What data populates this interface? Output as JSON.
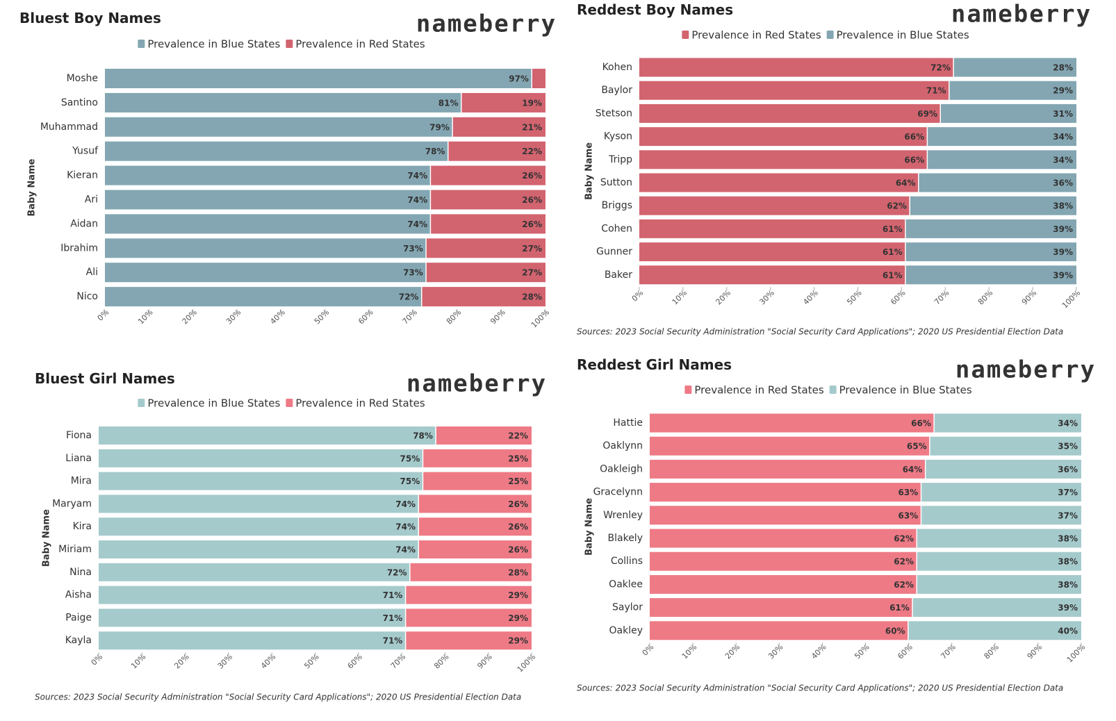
{
  "chart_data": [
    {
      "type": "stacked-bar",
      "title": "Bluest Boy Names",
      "brand": "nameberry",
      "y_label": "Baby Name",
      "categories": [
        "Moshe",
        "Santino",
        "Muhammad",
        "Yusuf",
        "Kieran",
        "Ari",
        "Aidan",
        "Ibrahim",
        "Ali",
        "Nico"
      ],
      "series": [
        {
          "name": "Prevalence in Blue States",
          "color": "#83a6b2",
          "label_color": "#ffffff",
          "values": [
            97,
            81,
            79,
            78,
            74,
            74,
            74,
            73,
            73,
            72
          ],
          "value_labels": [
            "97%",
            "81%",
            "79%",
            "78%",
            "74%",
            "74%",
            "74%",
            "73%",
            "73%",
            "72%"
          ]
        },
        {
          "name": "Prevalence in Red States",
          "color": "#d2646f",
          "label_color": "#ffffff",
          "values": [
            3,
            19,
            21,
            22,
            26,
            26,
            26,
            27,
            27,
            28
          ],
          "value_labels": [
            null,
            "19%",
            "21%",
            "22%",
            "26%",
            "26%",
            "26%",
            "27%",
            "27%",
            "28%"
          ]
        }
      ],
      "xlim": [
        0,
        100
      ],
      "xticks": [
        {
          "value": 0,
          "label": "0%"
        },
        {
          "value": 10,
          "label": "10%"
        },
        {
          "value": 20,
          "label": "20%"
        },
        {
          "value": 30,
          "label": "30%"
        },
        {
          "value": 40,
          "label": "40%"
        },
        {
          "value": 50,
          "label": "50%"
        },
        {
          "value": 60,
          "label": "60%"
        },
        {
          "value": 70,
          "label": "70%"
        },
        {
          "value": 80,
          "label": "80%"
        },
        {
          "value": 90,
          "label": "90%"
        },
        {
          "value": 100,
          "label": "100%"
        }
      ]
    },
    {
      "type": "stacked-bar",
      "title": "Reddest Boy Names",
      "brand": "nameberry",
      "y_label": "Baby Name",
      "source": "Sources: 2023 Social Security Administration \"Social Security Card Applications\"; 2020 US Presidential Election Data",
      "categories": [
        "Kohen",
        "Baylor",
        "Stetson",
        "Kyson",
        "Tripp",
        "Sutton",
        "Briggs",
        "Cohen",
        "Gunner",
        "Baker"
      ],
      "series": [
        {
          "name": "Prevalence in Red States",
          "color": "#d2646f",
          "label_color": "#ffffff",
          "values": [
            72,
            71,
            69,
            66,
            66,
            64,
            62,
            61,
            61,
            61
          ],
          "value_labels": [
            "72%",
            "71%",
            "69%",
            "66%",
            "66%",
            "64%",
            "62%",
            "61%",
            "61%",
            "61%"
          ]
        },
        {
          "name": "Prevalence in Blue States",
          "color": "#83a6b2",
          "label_color": "#ffffff",
          "values": [
            28,
            29,
            31,
            34,
            34,
            36,
            38,
            39,
            39,
            39
          ],
          "value_labels": [
            "28%",
            "29%",
            "31%",
            "34%",
            "34%",
            "36%",
            "38%",
            "39%",
            "39%",
            "39%"
          ]
        }
      ],
      "xlim": [
        0,
        100
      ],
      "xticks": [
        {
          "value": 0,
          "label": "0%"
        },
        {
          "value": 10,
          "label": "10%"
        },
        {
          "value": 20,
          "label": "20%"
        },
        {
          "value": 30,
          "label": "30%"
        },
        {
          "value": 40,
          "label": "40%"
        },
        {
          "value": 50,
          "label": "50%"
        },
        {
          "value": 60,
          "label": "60%"
        },
        {
          "value": 70,
          "label": "70%"
        },
        {
          "value": 80,
          "label": "80%"
        },
        {
          "value": 90,
          "label": "90%"
        },
        {
          "value": 100,
          "label": "100%"
        }
      ]
    },
    {
      "type": "stacked-bar",
      "title": "Bluest Girl Names",
      "brand": "nameberry",
      "y_label": "Baby Name",
      "source": "Sources: 2023 Social Security Administration \"Social Security Card Applications\"; 2020 US Presidential Election Data",
      "categories": [
        "Fiona",
        "Liana",
        "Mira",
        "Maryam",
        "Kira",
        "Miriam",
        "Nina",
        "Aisha",
        "Paige",
        "Kayla"
      ],
      "series": [
        {
          "name": "Prevalence in Blue States",
          "color": "#a5cacc",
          "label_color": "#111111",
          "values": [
            78,
            75,
            75,
            74,
            74,
            74,
            72,
            71,
            71,
            71
          ],
          "value_labels": [
            "78%",
            "75%",
            "75%",
            "74%",
            "74%",
            "74%",
            "72%",
            "71%",
            "71%",
            "71%"
          ]
        },
        {
          "name": "Prevalence in Red States",
          "color": "#ee7a86",
          "label_color": "#ffffff",
          "values": [
            22,
            25,
            25,
            26,
            26,
            26,
            28,
            29,
            29,
            29
          ],
          "value_labels": [
            "22%",
            "25%",
            "25%",
            "26%",
            "26%",
            "26%",
            "28%",
            "29%",
            "29%",
            "29%"
          ]
        }
      ],
      "xlim": [
        0,
        100
      ],
      "xticks": [
        {
          "value": 0,
          "label": "0%"
        },
        {
          "value": 10,
          "label": "10%"
        },
        {
          "value": 20,
          "label": "20%"
        },
        {
          "value": 30,
          "label": "30%"
        },
        {
          "value": 40,
          "label": "40%"
        },
        {
          "value": 50,
          "label": "50%"
        },
        {
          "value": 60,
          "label": "60%"
        },
        {
          "value": 70,
          "label": "70%"
        },
        {
          "value": 80,
          "label": "80%"
        },
        {
          "value": 90,
          "label": "90%"
        },
        {
          "value": 100,
          "label": "100%"
        }
      ]
    },
    {
      "type": "stacked-bar",
      "title": "Reddest Girl Names",
      "brand": "nameberry",
      "y_label": "Baby Name",
      "source": "Sources: 2023 Social Security Administration \"Social Security Card Applications\"; 2020 US Presidential Election Data",
      "categories": [
        "Hattie",
        "Oaklynn",
        "Oakleigh",
        "Gracelynn",
        "Wrenley",
        "Blakely",
        "Collins",
        "Oaklee",
        "Saylor",
        "Oakley"
      ],
      "series": [
        {
          "name": "Prevalence in Red States",
          "color": "#ee7a86",
          "label_color": "#ffffff",
          "values": [
            66,
            65,
            64,
            63,
            63,
            62,
            62,
            62,
            61,
            60
          ],
          "value_labels": [
            "66%",
            "65%",
            "64%",
            "63%",
            "63%",
            "62%",
            "62%",
            "62%",
            "61%",
            "60%"
          ]
        },
        {
          "name": "Prevalence in Blue States",
          "color": "#a5cacc",
          "label_color": "#111111",
          "values": [
            34,
            35,
            36,
            37,
            37,
            38,
            38,
            38,
            39,
            40
          ],
          "value_labels": [
            "34%",
            "35%",
            "36%",
            "37%",
            "37%",
            "38%",
            "38%",
            "38%",
            "39%",
            "40%"
          ]
        }
      ],
      "xlim": [
        0,
        100
      ],
      "xticks": [
        {
          "value": 0,
          "label": "0%"
        },
        {
          "value": 10,
          "label": "10%"
        },
        {
          "value": 20,
          "label": "20%"
        },
        {
          "value": 30,
          "label": "30%"
        },
        {
          "value": 40,
          "label": "40%"
        },
        {
          "value": 50,
          "label": "50%"
        },
        {
          "value": 60,
          "label": "60%"
        },
        {
          "value": 70,
          "label": "70%"
        },
        {
          "value": 80,
          "label": "80%"
        },
        {
          "value": 90,
          "label": "90%"
        },
        {
          "value": 100,
          "label": "100%"
        }
      ]
    }
  ]
}
